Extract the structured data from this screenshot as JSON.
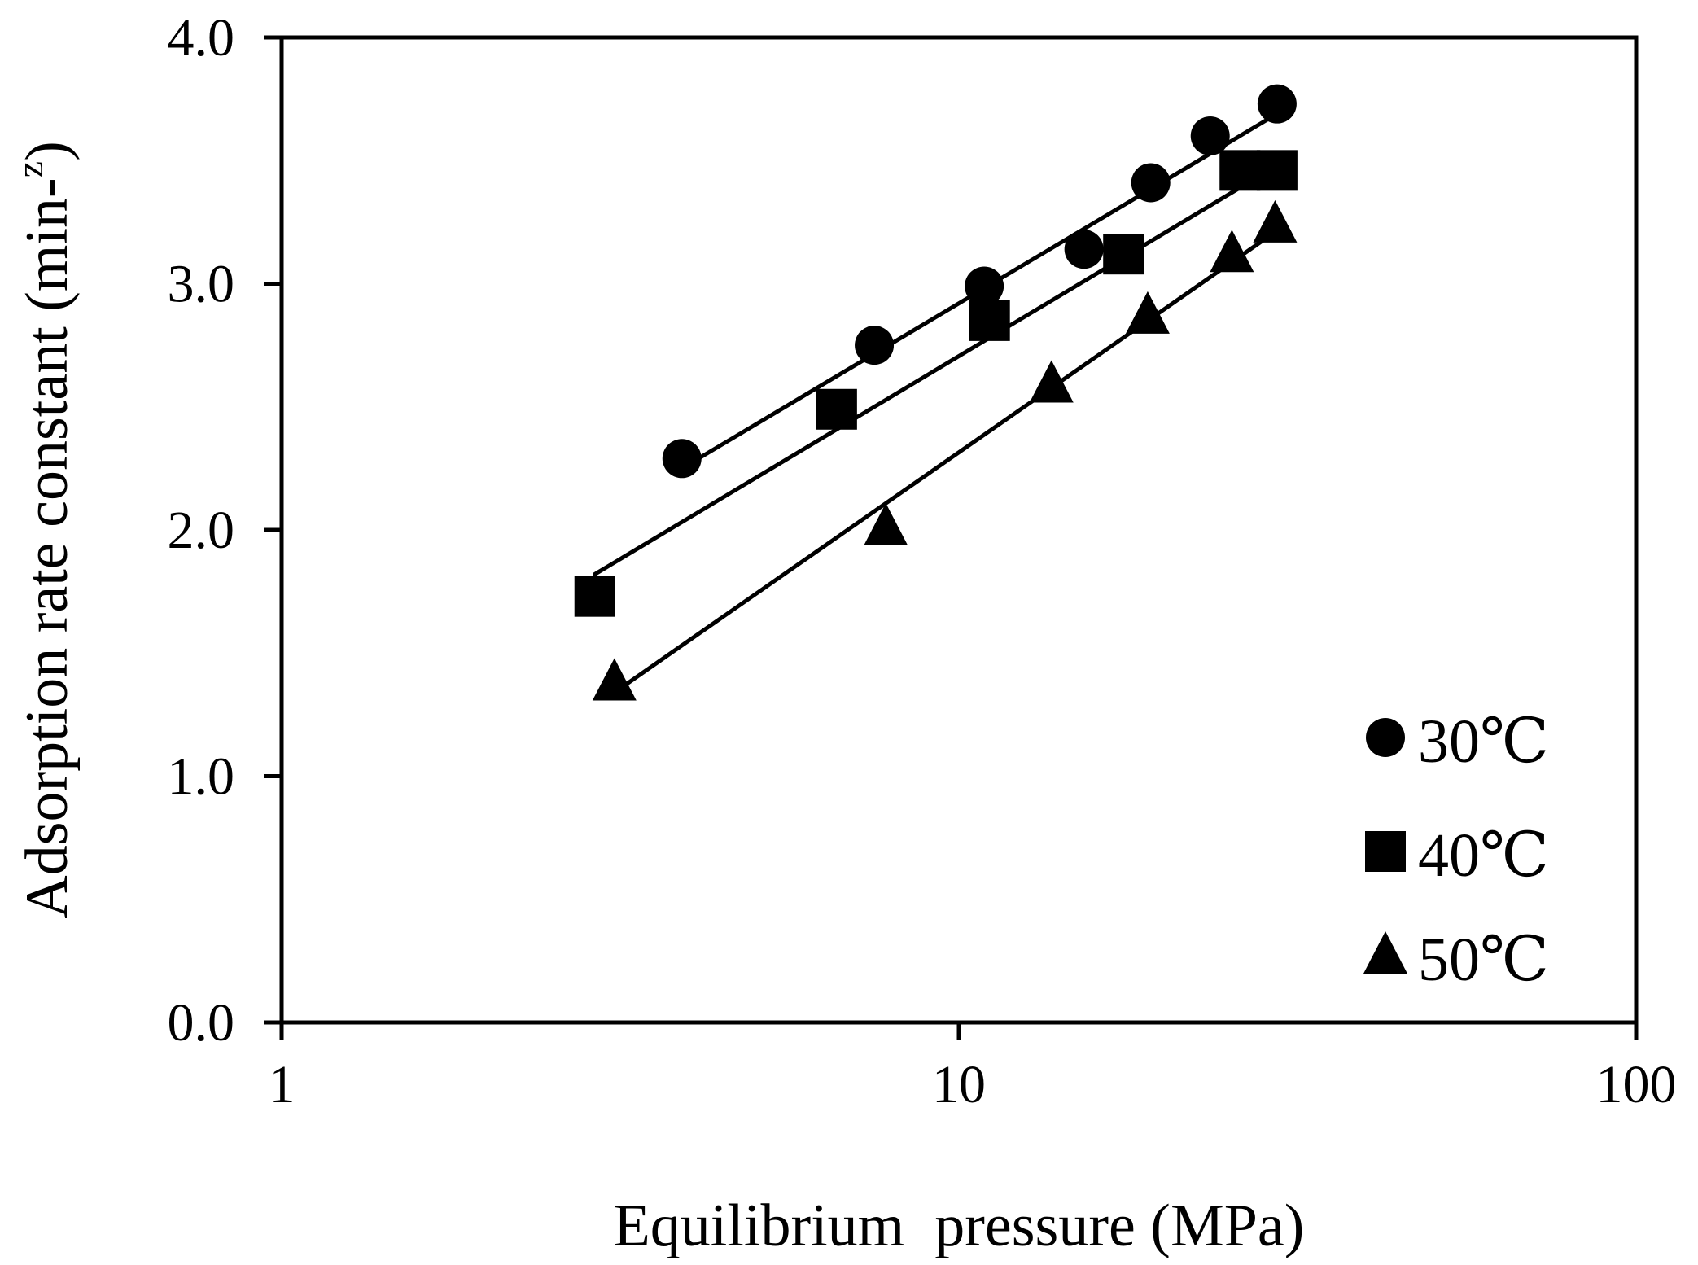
{
  "chart_data": {
    "type": "scatter",
    "title": "",
    "xlabel": "Equilibrium  pressure (MPa)",
    "ylabel_main": "Adsorption rate constant (min-",
    "ylabel_sup": "z",
    "ylabel_close": ")",
    "xscale": "log",
    "xlim": [
      1,
      100
    ],
    "ylim": [
      0.0,
      4.0
    ],
    "x_ticks": [
      1,
      10,
      100
    ],
    "x_tick_labels": [
      "1",
      "10",
      "100"
    ],
    "y_ticks": [
      0.0,
      1.0,
      2.0,
      3.0,
      4.0
    ],
    "y_tick_labels": [
      "0.0",
      "1.0",
      "2.0",
      "3.0",
      "4.0"
    ],
    "grid": false,
    "legend_position": "bottom-right",
    "series": [
      {
        "name": "30℃",
        "marker": "circle",
        "x": [
          3.9,
          7.5,
          10.9,
          15.3,
          19.2,
          23.5,
          29.5
        ],
        "y": [
          2.29,
          2.75,
          2.99,
          3.14,
          3.41,
          3.6,
          3.73
        ],
        "fit_line": {
          "x": [
            3.9,
            29.5
          ],
          "y": [
            2.25,
            3.69
          ]
        }
      },
      {
        "name": "40℃",
        "marker": "square",
        "x": [
          2.9,
          6.6,
          11.1,
          17.5,
          26.0,
          29.5
        ],
        "y": [
          1.73,
          2.49,
          2.85,
          3.12,
          3.46,
          3.46
        ],
        "fit_line": {
          "x": [
            2.9,
            29.5
          ],
          "y": [
            1.82,
            3.48
          ]
        }
      },
      {
        "name": "50℃",
        "marker": "triangle",
        "x": [
          3.1,
          7.8,
          13.7,
          19.0,
          25.3,
          29.3
        ],
        "y": [
          1.38,
          2.01,
          2.59,
          2.87,
          3.12,
          3.24
        ],
        "fit_line": {
          "x": [
            3.1,
            29.3
          ],
          "y": [
            1.34,
            3.21
          ]
        }
      }
    ]
  }
}
